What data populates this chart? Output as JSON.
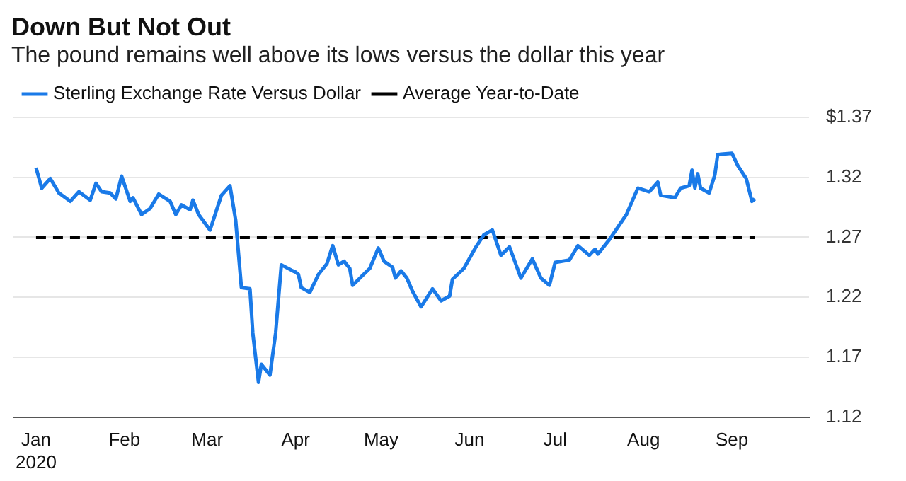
{
  "chart_data": {
    "type": "line",
    "title": "Down But Not Out",
    "subtitle": "The pound remains well above its lows versus the dollar this year",
    "xlim": [
      "2019-12-24",
      "2020-09-28"
    ],
    "xticks": [
      {
        "value": "2020-01-01",
        "label": "Jan\n2020"
      },
      {
        "value": "2020-02-01",
        "label": "Feb"
      },
      {
        "value": "2020-03-01",
        "label": "Mar"
      },
      {
        "value": "2020-04-01",
        "label": "Apr"
      },
      {
        "value": "2020-05-01",
        "label": "May"
      },
      {
        "value": "2020-06-01",
        "label": "Jun"
      },
      {
        "value": "2020-07-01",
        "label": "Jul"
      },
      {
        "value": "2020-08-01",
        "label": "Aug"
      },
      {
        "value": "2020-09-01",
        "label": "Sep"
      }
    ],
    "ylim": [
      1.12,
      1.37
    ],
    "yticks": [
      1.12,
      1.17,
      1.22,
      1.27,
      1.32,
      {
        "value": 1.37,
        "label": "$1.37"
      }
    ],
    "grid": "y",
    "legend": "top left",
    "marker": "none",
    "series": [
      {
        "name": "Sterling Exchange Rate Versus Dollar",
        "color": "#1a7ae8",
        "line_style": "solid",
        "x": [
          "2020-01-01",
          "2020-01-03",
          "2020-01-06",
          "2020-01-09",
          "2020-01-13",
          "2020-01-16",
          "2020-01-20",
          "2020-01-22",
          "2020-01-24",
          "2020-01-27",
          "2020-01-29",
          "2020-01-31",
          "2020-02-03",
          "2020-02-04",
          "2020-02-07",
          "2020-02-10",
          "2020-02-13",
          "2020-02-17",
          "2020-02-19",
          "2020-02-21",
          "2020-02-24",
          "2020-02-25",
          "2020-02-27",
          "2020-03-02",
          "2020-03-06",
          "2020-03-09",
          "2020-03-11",
          "2020-03-13",
          "2020-03-16",
          "2020-03-17",
          "2020-03-19",
          "2020-03-20",
          "2020-03-23",
          "2020-03-25",
          "2020-03-27",
          "2020-03-31",
          "2020-04-01",
          "2020-04-02",
          "2020-04-03",
          "2020-04-06",
          "2020-04-09",
          "2020-04-12",
          "2020-04-14",
          "2020-04-16",
          "2020-04-18",
          "2020-04-20",
          "2020-04-21",
          "2020-04-27",
          "2020-04-30",
          "2020-05-02",
          "2020-05-05",
          "2020-05-06",
          "2020-05-08",
          "2020-05-10",
          "2020-05-12",
          "2020-05-15",
          "2020-05-19",
          "2020-05-22",
          "2020-05-25",
          "2020-05-26",
          "2020-05-30",
          "2020-06-03",
          "2020-06-06",
          "2020-06-09",
          "2020-06-12",
          "2020-06-15",
          "2020-06-19",
          "2020-06-23",
          "2020-06-26",
          "2020-06-29",
          "2020-07-01",
          "2020-07-06",
          "2020-07-09",
          "2020-07-13",
          "2020-07-15",
          "2020-07-16",
          "2020-07-20",
          "2020-07-26",
          "2020-07-30",
          "2020-08-03",
          "2020-08-06",
          "2020-08-07",
          "2020-08-12",
          "2020-08-14",
          "2020-08-17",
          "2020-08-18",
          "2020-08-19",
          "2020-08-20",
          "2020-08-21",
          "2020-08-24",
          "2020-08-26",
          "2020-08-27",
          "2020-09-01",
          "2020-09-03",
          "2020-09-06",
          "2020-09-08",
          "2020-09-09"
        ],
        "values": [
          1.328,
          1.311,
          1.319,
          1.307,
          1.3,
          1.308,
          1.301,
          1.315,
          1.308,
          1.307,
          1.302,
          1.321,
          1.3,
          1.303,
          1.289,
          1.294,
          1.306,
          1.3,
          1.289,
          1.297,
          1.293,
          1.301,
          1.289,
          1.276,
          1.305,
          1.313,
          1.284,
          1.228,
          1.227,
          1.19,
          1.149,
          1.164,
          1.155,
          1.19,
          1.247,
          1.242,
          1.241,
          1.239,
          1.228,
          1.224,
          1.239,
          1.248,
          1.263,
          1.247,
          1.25,
          1.244,
          1.23,
          1.244,
          1.261,
          1.25,
          1.245,
          1.236,
          1.242,
          1.236,
          1.225,
          1.212,
          1.227,
          1.217,
          1.221,
          1.235,
          1.244,
          1.261,
          1.272,
          1.276,
          1.255,
          1.262,
          1.236,
          1.252,
          1.236,
          1.23,
          1.249,
          1.251,
          1.263,
          1.255,
          1.26,
          1.256,
          1.268,
          1.289,
          1.311,
          1.308,
          1.316,
          1.305,
          1.303,
          1.311,
          1.313,
          1.326,
          1.311,
          1.323,
          1.311,
          1.307,
          1.322,
          1.339,
          1.34,
          1.33,
          1.319,
          1.3,
          1.302
        ]
      },
      {
        "name": "Average Year-to-Date",
        "color": "#000000",
        "line_style": "dashed",
        "x": [
          "2020-01-01",
          "2020-09-09"
        ],
        "values": [
          1.27,
          1.27
        ]
      }
    ]
  }
}
